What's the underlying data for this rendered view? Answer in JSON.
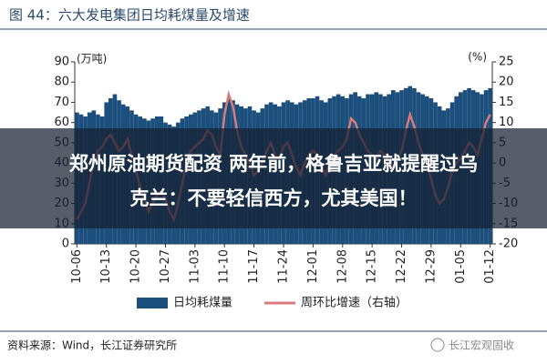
{
  "chart_data": {
    "type": "bar_line",
    "title": "图 44：六大发电集团日均耗煤量及增速",
    "y_label": "(万吨)",
    "y2_label": "(%)",
    "categories": [
      "10-06",
      null,
      null,
      null,
      null,
      null,
      null,
      "10-13",
      null,
      null,
      null,
      null,
      null,
      null,
      "10-20",
      null,
      null,
      null,
      null,
      null,
      null,
      "10-27",
      null,
      null,
      null,
      null,
      null,
      null,
      "11-03",
      null,
      null,
      null,
      null,
      null,
      null,
      "11-10",
      null,
      null,
      null,
      null,
      null,
      null,
      "11-17",
      null,
      null,
      null,
      null,
      null,
      null,
      "11-24",
      null,
      null,
      null,
      null,
      null,
      null,
      "12-01",
      null,
      null,
      null,
      null,
      null,
      null,
      "12-08",
      null,
      null,
      null,
      null,
      null,
      null,
      "12-15",
      null,
      null,
      null,
      null,
      null,
      null,
      "12-22",
      null,
      null,
      null,
      null,
      null,
      null,
      "12-29",
      null,
      null,
      null,
      null,
      null,
      null,
      "01-05",
      null,
      null,
      null,
      null,
      null,
      null,
      "01-12"
    ],
    "series": [
      {
        "name": "日均耗煤量",
        "type": "bar",
        "color": "#1c4f7c",
        "values": [
          65,
          64,
          63,
          65,
          66,
          64,
          63,
          70,
          72,
          74,
          71,
          69,
          68,
          66,
          64,
          63,
          62,
          61,
          62,
          63,
          63,
          60,
          59,
          58,
          60,
          62,
          63,
          64,
          65,
          66,
          67,
          68,
          66,
          65,
          67,
          70,
          72,
          71,
          69,
          68,
          67,
          68,
          66,
          65,
          67,
          69,
          70,
          69,
          68,
          70,
          71,
          70,
          69,
          70,
          71,
          72,
          72,
          73,
          71,
          70,
          72,
          73,
          74,
          73,
          72,
          74,
          75,
          73,
          72,
          74,
          74,
          75,
          74,
          73,
          74,
          76,
          75,
          76,
          77,
          78,
          77,
          75,
          74,
          73,
          72,
          70,
          68,
          66,
          67,
          70,
          73,
          75,
          76,
          77,
          76,
          75,
          74,
          76,
          77
        ]
      },
      {
        "name": "周环比增速（右轴）",
        "type": "line",
        "axis": "y2",
        "color": "#d97b7d",
        "values": [
          -14,
          -12,
          -10,
          -5,
          0,
          3,
          4,
          6,
          7,
          5,
          3,
          4,
          6,
          2,
          -2,
          -6,
          -9,
          -12,
          -10,
          -8,
          -7,
          -9,
          -12,
          -14,
          -10,
          -5,
          0,
          3,
          4,
          5,
          6,
          8,
          7,
          4,
          2,
          12,
          17,
          14,
          8,
          4,
          2,
          0,
          -3,
          -2,
          0,
          3,
          5,
          2,
          1,
          4,
          5,
          2,
          -1,
          -3,
          0,
          2,
          3,
          2,
          -1,
          -3,
          0,
          2,
          3,
          4,
          6,
          11,
          10,
          7,
          5,
          3,
          2,
          1,
          3,
          2,
          0,
          -1,
          1,
          3,
          8,
          12,
          9,
          5,
          2,
          0,
          -4,
          -8,
          -10,
          -9,
          -6,
          -2,
          0,
          1,
          3,
          5,
          4,
          2,
          6,
          10,
          12
        ]
      }
    ],
    "ylim": [
      0,
      90
    ],
    "yticks": [
      0,
      10,
      20,
      30,
      40,
      50,
      60,
      70,
      80,
      90
    ],
    "y2lim": [
      -20,
      25
    ],
    "y2ticks": [
      -20,
      -15,
      -10,
      -5,
      0,
      5,
      10,
      15,
      20,
      25
    ],
    "grid": false
  },
  "source": "资料来源：Wind，长江证券研究所",
  "watermark": "长江宏观固收",
  "overlay": {
    "lines": [
      "郑州原油期货配资 两年前，格鲁吉亚就提醒过乌",
      "克兰：不要轻信西方，尤其美国！"
    ]
  }
}
